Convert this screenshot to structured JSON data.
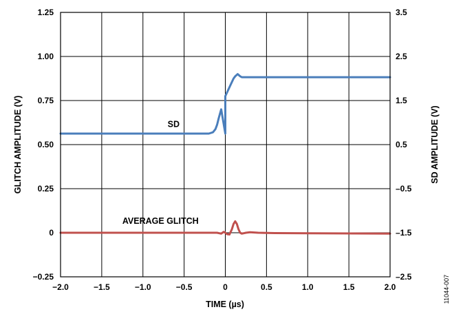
{
  "chart_data": {
    "type": "line",
    "title": "",
    "xlabel": "TIME (µs)",
    "ylabel_left": "GLITCH AMPLITUDE (V)",
    "ylabel_right": "SD AMPLITUDE (V)",
    "xlim": [
      -2.0,
      2.0
    ],
    "ylim_left": [
      -0.25,
      1.25
    ],
    "ylim_right": [
      -2.5,
      3.5
    ],
    "x_ticks": [
      -2.0,
      -1.5,
      -1.0,
      -0.5,
      0,
      0.5,
      1.0,
      1.5,
      2.0
    ],
    "x_tick_labels": [
      "−2.0",
      "−1.5",
      "−1.0",
      "−0.5",
      "0",
      "0.5",
      "1.0",
      "1.5",
      "2.0"
    ],
    "y_left_ticks": [
      -0.25,
      0,
      0.25,
      0.5,
      0.75,
      1.0,
      1.25
    ],
    "y_left_tick_labels": [
      "−0.25",
      "0",
      "0.25",
      "0.50",
      "0.75",
      "1.00",
      "1.25"
    ],
    "y_right_ticks": [
      -2.5,
      -1.5,
      -0.5,
      0.5,
      1.5,
      2.5,
      3.5
    ],
    "y_right_tick_labels": [
      "–2.5",
      "–1.5",
      "–0.5",
      "0.5",
      "1.5",
      "2.5",
      "3.5"
    ],
    "grid": true,
    "series": [
      {
        "name": "SD",
        "axis": "right",
        "color": "#4a7ebb",
        "x": [
          -2.0,
          -1.0,
          0.0,
          -0.2,
          -0.15,
          -0.12,
          -0.1,
          -0.08,
          -0.05,
          0.0,
          0.05,
          0.1,
          0.12,
          0.15,
          0.18,
          0.2,
          0.5,
          1.0,
          2.0
        ],
        "y": [
          0.75,
          0.75,
          0.75,
          0.75,
          0.78,
          0.85,
          0.95,
          1.1,
          1.3,
          1.6,
          1.8,
          2.0,
          2.05,
          2.1,
          2.05,
          2.03,
          2.03,
          2.03,
          2.03
        ]
      },
      {
        "name": "AVERAGE GLITCH",
        "axis": "left",
        "color": "#c0504d",
        "x": [
          -2.0,
          -0.5,
          -0.1,
          -0.05,
          -0.02,
          0.0,
          0.02,
          0.05,
          0.08,
          0.1,
          0.12,
          0.14,
          0.16,
          0.18,
          0.2,
          0.25,
          0.3,
          0.4,
          0.6,
          1.0,
          2.0
        ],
        "y": [
          0.0,
          0.0,
          0.0,
          -0.005,
          0.005,
          0.0,
          -0.008,
          -0.01,
          0.02,
          0.05,
          0.065,
          0.05,
          0.02,
          0.0,
          -0.005,
          0.0,
          0.003,
          0.0,
          -0.002,
          -0.003,
          -0.005
        ]
      }
    ],
    "annotations": [
      {
        "text": "SD",
        "x": -0.7,
        "y_left": 0.6
      },
      {
        "text": "AVERAGE GLITCH",
        "x": -1.25,
        "y_left": 0.05
      }
    ],
    "figure_id": "11044-007"
  }
}
